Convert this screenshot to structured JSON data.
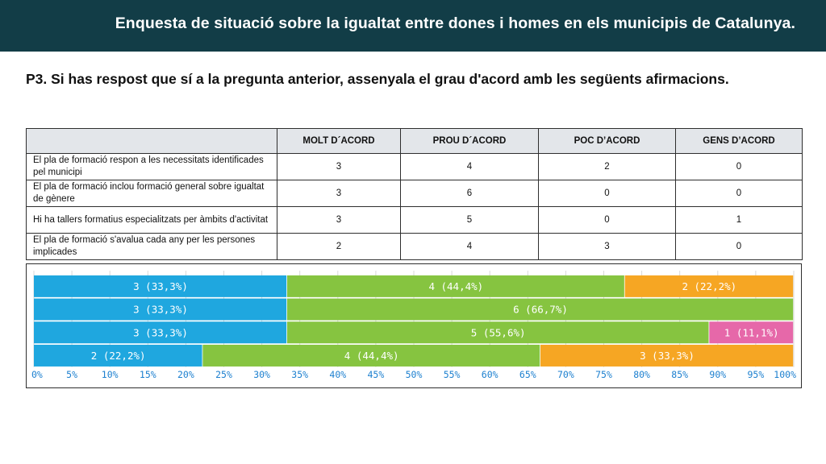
{
  "header": {
    "title": "Enquesta de situació sobre la  igualtat entre dones i homes en els municipis de Catalunya."
  },
  "question": {
    "text": "P3. Si has respost que sí a la pregunta anterior, assenyala el grau d'acord amb les següents afirmacions."
  },
  "table": {
    "columns": [
      "",
      "MOLT D´ACORD",
      "PROU D´ACORD",
      "POC D’ACORD",
      "GENS D’ACORD"
    ],
    "rows": [
      {
        "label": "El pla de formació respon a les necessitats identificades pel municipi",
        "values": [
          "3",
          "4",
          "2",
          "0"
        ]
      },
      {
        "label": "El pla de formació inclou formació general sobre igualtat de gènere",
        "values": [
          "3",
          "6",
          "0",
          "0"
        ]
      },
      {
        "label": "Hi ha tallers formatius especialitzats per àmbits d'activitat",
        "values": [
          "3",
          "5",
          "0",
          "1"
        ]
      },
      {
        "label": "El pla de formació s'avalua cada any per les persones implicades",
        "values": [
          "2",
          "4",
          "3",
          "0"
        ]
      }
    ]
  },
  "colors": {
    "molt": "#1fa7df",
    "prou": "#86c440",
    "poc": "#f6a623",
    "gens": "#e668a9",
    "header_bg": "#123d47",
    "axis_text": "#1b7fcf"
  },
  "chart_data": {
    "type": "bar",
    "orientation": "horizontal",
    "stacked": true,
    "normalized": true,
    "xlim": [
      0,
      100
    ],
    "x_ticks": [
      "0%",
      "5%",
      "10%",
      "15%",
      "20%",
      "25%",
      "30%",
      "35%",
      "40%",
      "45%",
      "50%",
      "55%",
      "60%",
      "65%",
      "70%",
      "75%",
      "80%",
      "85%",
      "90%",
      "95%",
      "100%"
    ],
    "grid": true,
    "categories": [
      "El pla de formació respon a les necessitats identificades pel municipi",
      "El pla de formació inclou formació general sobre igualtat de gènere",
      "Hi ha tallers formatius especialitzats per àmbits d'activitat",
      "El pla de formació s'avalua cada any per les persones implicades"
    ],
    "series": [
      {
        "color": "#1fa7df",
        "values": [
          3,
          3,
          3,
          2
        ],
        "labels": [
          "3 (33,3%)",
          "3 (33,3%)",
          "3 (33,3%)",
          "2 (22,2%)"
        ]
      },
      {
        "color": "#86c440",
        "values": [
          4,
          6,
          5,
          4
        ],
        "labels": [
          "4 (44,4%)",
          "6 (66,7%)",
          "5 (55,6%)",
          "4 (44,4%)"
        ]
      },
      {
        "color": "#f6a623",
        "values": [
          2,
          0,
          0,
          3
        ],
        "labels": [
          "2 (22,2%)",
          "",
          "",
          "3 (33,3%)"
        ]
      },
      {
        "color": "#e668a9",
        "values": [
          0,
          0,
          1,
          0
        ],
        "labels": [
          "",
          "",
          "1 (11,1%)",
          ""
        ]
      }
    ]
  }
}
